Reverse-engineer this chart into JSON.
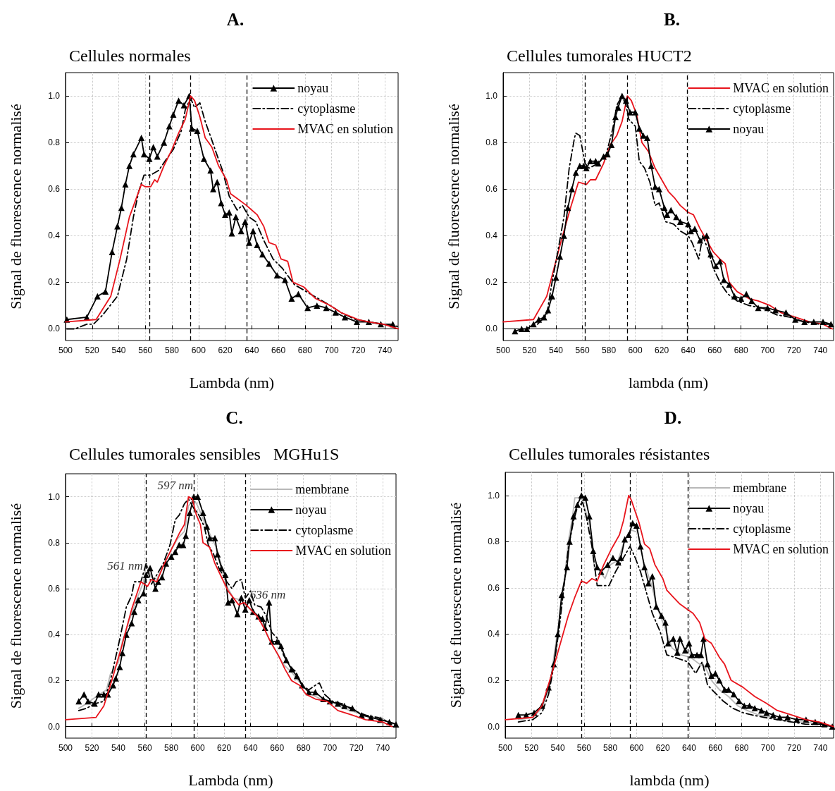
{
  "chart_data": [
    {
      "type": "line",
      "title": "A.",
      "subtitle": "Cellules normales",
      "xlabel": "Lambda (nm)",
      "ylabel": "Signal de fluorescence normalisé",
      "xlim": [
        500,
        750
      ],
      "ylim": [
        -0.05,
        1.1
      ],
      "xticks": [
        500,
        520,
        540,
        560,
        580,
        600,
        620,
        640,
        660,
        680,
        700,
        720,
        740
      ],
      "yticks": [
        {
          "value": 0,
          "label": "0.0"
        },
        {
          "value": 0.2,
          "label": "0.2"
        },
        {
          "value": 0.4,
          "label": "0.4"
        },
        {
          "value": 0.6,
          "label": "0.6"
        },
        {
          "value": 0.8,
          "label": "0.8"
        },
        {
          "value": 1,
          "label": "1.0"
        }
      ],
      "grid": true,
      "legend": "top right",
      "ref_lines": [
        {
          "axis": "x",
          "value": 563,
          "color": "#000000",
          "line_style": "dashed"
        },
        {
          "axis": "x",
          "value": 594,
          "color": "#000000",
          "line_style": "dashed"
        },
        {
          "axis": "x",
          "value": 636,
          "color": "#000000",
          "line_style": "dashed"
        }
      ],
      "series": [
        {
          "name": "noyau",
          "color": "#000000",
          "marker": "triangle",
          "line_style": "solid",
          "x": [
            501,
            516,
            524,
            530,
            535,
            539,
            542,
            545,
            548,
            551,
            557,
            559,
            563,
            566,
            569,
            574,
            578,
            581,
            585,
            589,
            593,
            595,
            599,
            604,
            609,
            611,
            614,
            617,
            620,
            623,
            625,
            628,
            632,
            635,
            638,
            641,
            644,
            648,
            653,
            659,
            665,
            670,
            675,
            682,
            689,
            696,
            703,
            710,
            719,
            728,
            737,
            746
          ],
          "values": [
            0.04,
            0.05,
            0.14,
            0.16,
            0.33,
            0.44,
            0.52,
            0.62,
            0.7,
            0.75,
            0.82,
            0.75,
            0.73,
            0.78,
            0.74,
            0.8,
            0.87,
            0.92,
            0.98,
            0.96,
            1.0,
            0.86,
            0.85,
            0.73,
            0.68,
            0.6,
            0.63,
            0.54,
            0.49,
            0.5,
            0.41,
            0.48,
            0.42,
            0.46,
            0.37,
            0.42,
            0.36,
            0.32,
            0.28,
            0.23,
            0.21,
            0.13,
            0.15,
            0.09,
            0.1,
            0.09,
            0.07,
            0.05,
            0.03,
            0.03,
            0.02,
            0.02
          ]
        },
        {
          "name": "cytoplasme",
          "color": "#000000",
          "marker": "none",
          "line_style": "dashdot",
          "x": [
            501,
            507,
            516,
            521,
            528,
            539,
            546,
            551,
            555,
            559,
            564,
            570,
            576,
            581,
            587,
            590,
            594,
            597,
            601,
            605,
            610,
            613,
            618,
            623,
            629,
            633,
            638,
            643,
            649,
            656,
            663,
            672,
            681,
            690,
            699,
            707,
            718,
            728,
            739,
            750
          ],
          "values": [
            0.0,
            0.0,
            0.02,
            0.02,
            0.06,
            0.14,
            0.3,
            0.48,
            0.59,
            0.66,
            0.66,
            0.68,
            0.73,
            0.77,
            0.85,
            0.94,
            0.99,
            0.95,
            0.97,
            0.89,
            0.81,
            0.76,
            0.68,
            0.57,
            0.51,
            0.53,
            0.48,
            0.46,
            0.38,
            0.3,
            0.26,
            0.19,
            0.16,
            0.13,
            0.1,
            0.07,
            0.04,
            0.03,
            0.02,
            0.01
          ]
        },
        {
          "name": "MVAC en solution",
          "color": "#e8141c",
          "marker": "none",
          "line_style": "solid",
          "x": [
            500,
            523,
            534,
            541,
            548,
            557,
            560,
            564,
            567,
            569,
            574,
            580,
            585,
            590,
            594,
            597,
            601,
            605,
            610,
            615,
            621,
            624,
            629,
            636,
            640,
            644,
            649,
            653,
            658,
            662,
            667,
            671,
            679,
            688,
            699,
            707,
            720,
            728,
            739,
            750
          ],
          "values": [
            0.03,
            0.04,
            0.14,
            0.3,
            0.48,
            0.62,
            0.61,
            0.61,
            0.64,
            0.63,
            0.7,
            0.77,
            0.84,
            0.9,
            1.0,
            0.98,
            0.91,
            0.82,
            0.78,
            0.7,
            0.64,
            0.58,
            0.56,
            0.53,
            0.51,
            0.49,
            0.44,
            0.37,
            0.36,
            0.3,
            0.29,
            0.2,
            0.18,
            0.13,
            0.1,
            0.07,
            0.04,
            0.03,
            0.02,
            0.0
          ]
        }
      ]
    },
    {
      "type": "line",
      "title": "B.",
      "subtitle": "Cellules tumorales HUCT2",
      "xlabel": "lambda (nm)",
      "ylabel": "Signal de fluorescence normalisé",
      "xlim": [
        500,
        750
      ],
      "ylim": [
        -0.05,
        1.1
      ],
      "xticks": [
        500,
        520,
        540,
        560,
        580,
        600,
        620,
        640,
        660,
        680,
        700,
        720,
        740
      ],
      "yticks": [
        {
          "value": 0,
          "label": "0.0"
        },
        {
          "value": 0.2,
          "label": "0.2"
        },
        {
          "value": 0.4,
          "label": "0.4"
        },
        {
          "value": 0.6,
          "label": "0.6"
        },
        {
          "value": 0.8,
          "label": "0.8"
        },
        {
          "value": 1,
          "label": "1.0"
        }
      ],
      "grid": true,
      "legend": "top right",
      "ref_lines": [
        {
          "axis": "x",
          "value": 562,
          "color": "#000000",
          "line_style": "dashed"
        },
        {
          "axis": "x",
          "value": 594,
          "color": "#000000",
          "line_style": "dashed"
        },
        {
          "axis": "x",
          "value": 639,
          "color": "#000000",
          "line_style": "dashed"
        }
      ],
      "series": [
        {
          "name": "MVAC en solution",
          "color": "#e8141c",
          "marker": "none",
          "line_style": "solid",
          "x": [
            500,
            523,
            533,
            544,
            551,
            557,
            563,
            566,
            570,
            576,
            581,
            586,
            590,
            594,
            597,
            601,
            605,
            610,
            615,
            620,
            625,
            630,
            634,
            640,
            644,
            649,
            654,
            659,
            664,
            668,
            671,
            677,
            686,
            693,
            702,
            710,
            721,
            732,
            742,
            749
          ],
          "values": [
            0.03,
            0.04,
            0.14,
            0.38,
            0.52,
            0.63,
            0.62,
            0.64,
            0.64,
            0.71,
            0.79,
            0.83,
            0.89,
            1.0,
            0.98,
            0.92,
            0.8,
            0.76,
            0.69,
            0.64,
            0.59,
            0.56,
            0.53,
            0.5,
            0.49,
            0.43,
            0.38,
            0.33,
            0.3,
            0.28,
            0.2,
            0.16,
            0.13,
            0.12,
            0.1,
            0.07,
            0.05,
            0.03,
            0.02,
            0.0
          ]
        },
        {
          "name": "cytoplasme",
          "color": "#000000",
          "marker": "none",
          "line_style": "dashdot",
          "x": [
            526,
            533,
            537,
            541,
            546,
            550,
            554,
            555,
            558,
            562,
            565,
            572,
            578,
            583,
            586,
            590,
            593,
            595,
            600,
            603,
            607,
            611,
            615,
            618,
            623,
            629,
            634,
            640,
            643,
            648,
            651,
            655,
            659,
            665,
            670,
            677,
            686,
            696,
            707,
            717,
            728,
            739,
            749
          ],
          "values": [
            0.02,
            0.06,
            0.2,
            0.32,
            0.48,
            0.69,
            0.82,
            0.84,
            0.83,
            0.71,
            0.69,
            0.71,
            0.75,
            0.86,
            0.96,
            1.0,
            0.96,
            0.9,
            0.87,
            0.72,
            0.69,
            0.63,
            0.53,
            0.54,
            0.46,
            0.45,
            0.42,
            0.4,
            0.37,
            0.3,
            0.4,
            0.34,
            0.26,
            0.19,
            0.15,
            0.12,
            0.1,
            0.09,
            0.06,
            0.05,
            0.03,
            0.02,
            0.02
          ]
        },
        {
          "name": "noyau",
          "color": "#000000",
          "marker": "triangle",
          "line_style": "solid",
          "x": [
            509,
            514,
            518,
            523,
            527,
            531,
            534,
            537,
            540,
            543,
            546,
            549,
            552,
            555,
            558,
            561,
            563,
            566,
            570,
            572,
            576,
            579,
            582,
            585,
            587,
            590,
            593,
            596,
            600,
            603,
            606,
            609,
            612,
            615,
            618,
            622,
            624,
            627,
            631,
            634,
            640,
            642,
            645,
            649,
            654,
            657,
            661,
            664,
            667,
            671,
            675,
            680,
            684,
            688,
            693,
            700,
            706,
            714,
            721,
            728,
            735,
            742,
            748
          ],
          "values": [
            -0.01,
            0.0,
            0.0,
            0.02,
            0.04,
            0.05,
            0.08,
            0.14,
            0.22,
            0.31,
            0.4,
            0.52,
            0.6,
            0.67,
            0.7,
            0.7,
            0.69,
            0.72,
            0.72,
            0.71,
            0.74,
            0.75,
            0.79,
            0.91,
            0.95,
            1.0,
            0.98,
            0.93,
            0.93,
            0.86,
            0.83,
            0.82,
            0.7,
            0.61,
            0.6,
            0.52,
            0.49,
            0.51,
            0.48,
            0.46,
            0.45,
            0.42,
            0.43,
            0.38,
            0.4,
            0.32,
            0.27,
            0.29,
            0.21,
            0.19,
            0.14,
            0.13,
            0.15,
            0.12,
            0.09,
            0.09,
            0.08,
            0.07,
            0.04,
            0.03,
            0.03,
            0.03,
            0.02
          ]
        }
      ]
    },
    {
      "type": "line",
      "title": "C.",
      "subtitle": "Cellules tumorales sensibles   MGHu1S",
      "xlabel": "Lambda (nm)",
      "ylabel": "Signal de fluorescence normalisé",
      "xlim": [
        500,
        750
      ],
      "ylim": [
        -0.05,
        1.1
      ],
      "xticks": [
        500,
        520,
        540,
        560,
        580,
        600,
        620,
        640,
        660,
        680,
        700,
        720,
        740
      ],
      "yticks": [
        {
          "value": 0,
          "label": "0.0"
        },
        {
          "value": 0.2,
          "label": "0.2"
        },
        {
          "value": 0.4,
          "label": "0.4"
        },
        {
          "value": 0.6,
          "label": "0.6"
        },
        {
          "value": 0.8,
          "label": "0.8"
        },
        {
          "value": 1,
          "label": "1.0"
        }
      ],
      "grid": true,
      "legend": "top right",
      "ref_lines": [
        {
          "axis": "x",
          "value": 561,
          "color": "#000000",
          "line_style": "dashed"
        },
        {
          "axis": "x",
          "value": 597,
          "color": "#000000",
          "line_style": "dashed"
        },
        {
          "axis": "x",
          "value": 636,
          "color": "#000000",
          "line_style": "dashed"
        }
      ],
      "annotations": [
        "597 nm",
        "561 nm",
        "636 nm"
      ],
      "series": [
        {
          "name": "membrane",
          "color": "#b8b8b8",
          "marker": "none",
          "line_style": "solid",
          "x": [
            510,
            516,
            523,
            531,
            534,
            540,
            543,
            548,
            553,
            559,
            561,
            565,
            569,
            574,
            580,
            585,
            590,
            593,
            597,
            600,
            605,
            609,
            614,
            618,
            622,
            627,
            633,
            638,
            643,
            648,
            654,
            659,
            665,
            672,
            679,
            686,
            693,
            701,
            710,
            721,
            731,
            739,
            746
          ],
          "values": [
            0.08,
            0.1,
            0.13,
            0.16,
            0.23,
            0.28,
            0.37,
            0.46,
            0.54,
            0.63,
            0.71,
            0.65,
            0.64,
            0.7,
            0.77,
            0.82,
            0.85,
            0.96,
            0.99,
            0.96,
            0.89,
            0.84,
            0.78,
            0.7,
            0.61,
            0.56,
            0.55,
            0.52,
            0.49,
            0.46,
            0.38,
            0.33,
            0.27,
            0.23,
            0.18,
            0.14,
            0.12,
            0.11,
            0.08,
            0.06,
            0.04,
            0.04,
            0.01
          ]
        },
        {
          "name": "noyau",
          "color": "#000000",
          "marker": "triangle",
          "line_style": "solid",
          "x": [
            510,
            514,
            517,
            522,
            525,
            529,
            532,
            536,
            538,
            541,
            543,
            546,
            550,
            552,
            555,
            559,
            561,
            564,
            568,
            570,
            573,
            576,
            580,
            583,
            586,
            589,
            591,
            594,
            597,
            600,
            604,
            607,
            609,
            613,
            615,
            618,
            621,
            623,
            626,
            630,
            633,
            636,
            639,
            642,
            646,
            649,
            651,
            654,
            656,
            660,
            663,
            667,
            671,
            675,
            679,
            684,
            689,
            695,
            700,
            706,
            711,
            717,
            724,
            731,
            738,
            745,
            750
          ],
          "values": [
            0.11,
            0.14,
            0.11,
            0.1,
            0.14,
            0.14,
            0.14,
            0.18,
            0.21,
            0.26,
            0.32,
            0.4,
            0.45,
            0.5,
            0.55,
            0.58,
            0.66,
            0.69,
            0.6,
            0.63,
            0.65,
            0.71,
            0.74,
            0.76,
            0.79,
            0.79,
            0.83,
            0.93,
            1.0,
            1.0,
            0.93,
            0.87,
            0.82,
            0.82,
            0.75,
            0.69,
            0.66,
            0.54,
            0.55,
            0.49,
            0.56,
            0.51,
            0.55,
            0.5,
            0.48,
            0.47,
            0.43,
            0.54,
            0.37,
            0.37,
            0.35,
            0.29,
            0.25,
            0.22,
            0.18,
            0.15,
            0.15,
            0.12,
            0.11,
            0.1,
            0.09,
            0.08,
            0.05,
            0.04,
            0.03,
            0.02,
            0.01
          ]
        },
        {
          "name": "cytoplasme",
          "color": "#000000",
          "marker": "none",
          "line_style": "dashdot",
          "x": [
            510,
            516,
            522,
            529,
            534,
            541,
            546,
            550,
            552,
            557,
            561,
            565,
            569,
            574,
            579,
            583,
            586,
            590,
            593,
            597,
            600,
            605,
            608,
            612,
            616,
            622,
            626,
            629,
            633,
            636,
            640,
            643,
            648,
            652,
            656,
            661,
            665,
            670,
            674,
            679,
            684,
            689,
            692,
            696,
            702,
            709,
            718,
            727,
            736,
            745,
            750
          ],
          "values": [
            0.07,
            0.08,
            0.1,
            0.11,
            0.2,
            0.38,
            0.52,
            0.57,
            0.63,
            0.63,
            0.71,
            0.62,
            0.66,
            0.71,
            0.79,
            0.9,
            0.92,
            0.97,
            0.99,
            0.95,
            0.93,
            0.87,
            0.79,
            0.75,
            0.69,
            0.63,
            0.6,
            0.63,
            0.64,
            0.56,
            0.59,
            0.53,
            0.52,
            0.48,
            0.41,
            0.38,
            0.31,
            0.26,
            0.24,
            0.18,
            0.16,
            0.18,
            0.19,
            0.14,
            0.11,
            0.1,
            0.07,
            0.05,
            0.04,
            0.02,
            0.01
          ]
        },
        {
          "name": "MVAC en solution",
          "color": "#e8141c",
          "marker": "none",
          "line_style": "solid",
          "x": [
            500,
            523,
            529,
            536,
            543,
            550,
            557,
            562,
            565,
            569,
            574,
            580,
            586,
            590,
            593,
            596,
            599,
            602,
            604,
            609,
            613,
            618,
            623,
            627,
            631,
            635,
            640,
            645,
            650,
            655,
            661,
            666,
            671,
            677,
            682,
            689,
            698,
            706,
            717,
            727,
            740,
            747
          ],
          "values": [
            0.03,
            0.04,
            0.09,
            0.22,
            0.36,
            0.51,
            0.63,
            0.61,
            0.64,
            0.63,
            0.7,
            0.77,
            0.84,
            0.88,
            1.0,
            0.99,
            0.92,
            0.88,
            0.8,
            0.78,
            0.71,
            0.65,
            0.59,
            0.56,
            0.53,
            0.54,
            0.51,
            0.48,
            0.43,
            0.37,
            0.31,
            0.25,
            0.2,
            0.18,
            0.14,
            0.12,
            0.11,
            0.07,
            0.05,
            0.03,
            0.02,
            0.0
          ]
        }
      ]
    },
    {
      "type": "line",
      "title": "D.",
      "subtitle": "Cellules tumorales résistantes",
      "xlabel": "lambda (nm)",
      "ylabel": "Signal de fluorescence normalisé",
      "xlim": [
        500,
        750
      ],
      "ylim": [
        -0.05,
        1.1
      ],
      "xticks": [
        500,
        520,
        540,
        560,
        580,
        600,
        620,
        640,
        660,
        680,
        700,
        720,
        740
      ],
      "yticks": [
        {
          "value": 0,
          "label": "0.0"
        },
        {
          "value": 0.2,
          "label": "0.2"
        },
        {
          "value": 0.4,
          "label": "0.4"
        },
        {
          "value": 0.6,
          "label": "0.6"
        },
        {
          "value": 0.8,
          "label": "0.8"
        },
        {
          "value": 1,
          "label": "1.0"
        }
      ],
      "grid": true,
      "legend": "top right",
      "ref_lines": [
        {
          "axis": "x",
          "value": 558,
          "color": "#000000",
          "line_style": "dashed"
        },
        {
          "axis": "x",
          "value": 595,
          "color": "#000000",
          "line_style": "dashed"
        },
        {
          "axis": "x",
          "value": 639,
          "color": "#000000",
          "line_style": "dashed"
        }
      ],
      "series": [
        {
          "name": "membrane",
          "color": "#b8b8b8",
          "marker": "none",
          "line_style": "solid",
          "x": [
            510,
            521,
            528,
            534,
            539,
            544,
            548,
            551,
            553,
            558,
            564,
            568,
            571,
            576,
            580,
            586,
            591,
            596,
            601,
            605,
            611,
            616,
            622,
            627,
            634,
            641,
            648,
            652,
            657,
            663,
            670,
            677,
            684,
            693,
            704,
            716,
            729,
            739,
            749
          ],
          "values": [
            0.03,
            0.04,
            0.08,
            0.18,
            0.38,
            0.57,
            0.8,
            0.9,
            0.99,
            0.99,
            0.88,
            0.68,
            0.68,
            0.64,
            0.7,
            0.72,
            0.81,
            0.85,
            0.84,
            0.72,
            0.62,
            0.51,
            0.42,
            0.34,
            0.31,
            0.3,
            0.27,
            0.26,
            0.2,
            0.16,
            0.13,
            0.09,
            0.07,
            0.05,
            0.04,
            0.02,
            0.02,
            0.01,
            0.0
          ]
        },
        {
          "name": "noyau",
          "color": "#000000",
          "marker": "triangle",
          "line_style": "solid",
          "x": [
            510,
            516,
            522,
            528,
            533,
            537,
            540,
            543,
            547,
            549,
            552,
            555,
            558,
            561,
            564,
            567,
            570,
            573,
            578,
            582,
            586,
            588,
            591,
            594,
            597,
            600,
            603,
            606,
            609,
            612,
            615,
            619,
            622,
            624,
            628,
            631,
            633,
            637,
            640,
            642,
            646,
            649,
            651,
            654,
            657,
            660,
            663,
            667,
            670,
            674,
            678,
            682,
            686,
            690,
            695,
            699,
            704,
            709,
            715,
            722,
            729,
            736,
            743,
            749
          ],
          "values": [
            0.05,
            0.05,
            0.06,
            0.09,
            0.17,
            0.27,
            0.4,
            0.57,
            0.69,
            0.8,
            0.91,
            0.96,
            1.0,
            0.99,
            0.91,
            0.76,
            0.69,
            0.67,
            0.7,
            0.73,
            0.71,
            0.73,
            0.81,
            0.83,
            0.88,
            0.87,
            0.78,
            0.69,
            0.62,
            0.65,
            0.52,
            0.48,
            0.45,
            0.36,
            0.38,
            0.32,
            0.38,
            0.33,
            0.36,
            0.31,
            0.31,
            0.31,
            0.38,
            0.27,
            0.22,
            0.23,
            0.2,
            0.16,
            0.16,
            0.14,
            0.11,
            0.09,
            0.09,
            0.08,
            0.07,
            0.06,
            0.05,
            0.04,
            0.04,
            0.03,
            0.03,
            0.02,
            0.01,
            0.0
          ]
        },
        {
          "name": "cytoplasme",
          "color": "#000000",
          "marker": "none",
          "line_style": "dashdot",
          "x": [
            510,
            521,
            528,
            533,
            537,
            541,
            544,
            548,
            552,
            555,
            559,
            562,
            566,
            570,
            575,
            579,
            584,
            589,
            595,
            599,
            603,
            608,
            612,
            618,
            623,
            629,
            634,
            639,
            645,
            650,
            654,
            659,
            666,
            673,
            681,
            688,
            697,
            707,
            718,
            729,
            739,
            749
          ],
          "values": [
            0.02,
            0.03,
            0.06,
            0.14,
            0.26,
            0.42,
            0.57,
            0.77,
            0.89,
            0.95,
            0.97,
            0.9,
            0.78,
            0.61,
            0.61,
            0.61,
            0.67,
            0.72,
            0.78,
            0.73,
            0.67,
            0.57,
            0.49,
            0.41,
            0.31,
            0.3,
            0.29,
            0.28,
            0.23,
            0.28,
            0.18,
            0.15,
            0.11,
            0.08,
            0.06,
            0.05,
            0.04,
            0.03,
            0.02,
            0.01,
            0.01,
            0.0
          ]
        },
        {
          "name": "MVAC en solution",
          "color": "#e8141c",
          "marker": "none",
          "line_style": "solid",
          "x": [
            500,
            521,
            528,
            535,
            543,
            548,
            553,
            558,
            562,
            566,
            570,
            575,
            581,
            587,
            590,
            594,
            596,
            602,
            606,
            610,
            614,
            620,
            623,
            628,
            633,
            638,
            643,
            648,
            652,
            657,
            663,
            667,
            672,
            681,
            690,
            699,
            707,
            718,
            729,
            739,
            750
          ],
          "values": [
            0.03,
            0.04,
            0.09,
            0.22,
            0.38,
            0.48,
            0.56,
            0.63,
            0.62,
            0.64,
            0.63,
            0.7,
            0.77,
            0.83,
            0.89,
            1.0,
            0.98,
            0.88,
            0.79,
            0.77,
            0.7,
            0.64,
            0.59,
            0.56,
            0.53,
            0.51,
            0.49,
            0.45,
            0.38,
            0.36,
            0.3,
            0.27,
            0.2,
            0.17,
            0.13,
            0.1,
            0.07,
            0.05,
            0.03,
            0.02,
            0.0
          ]
        }
      ]
    }
  ]
}
